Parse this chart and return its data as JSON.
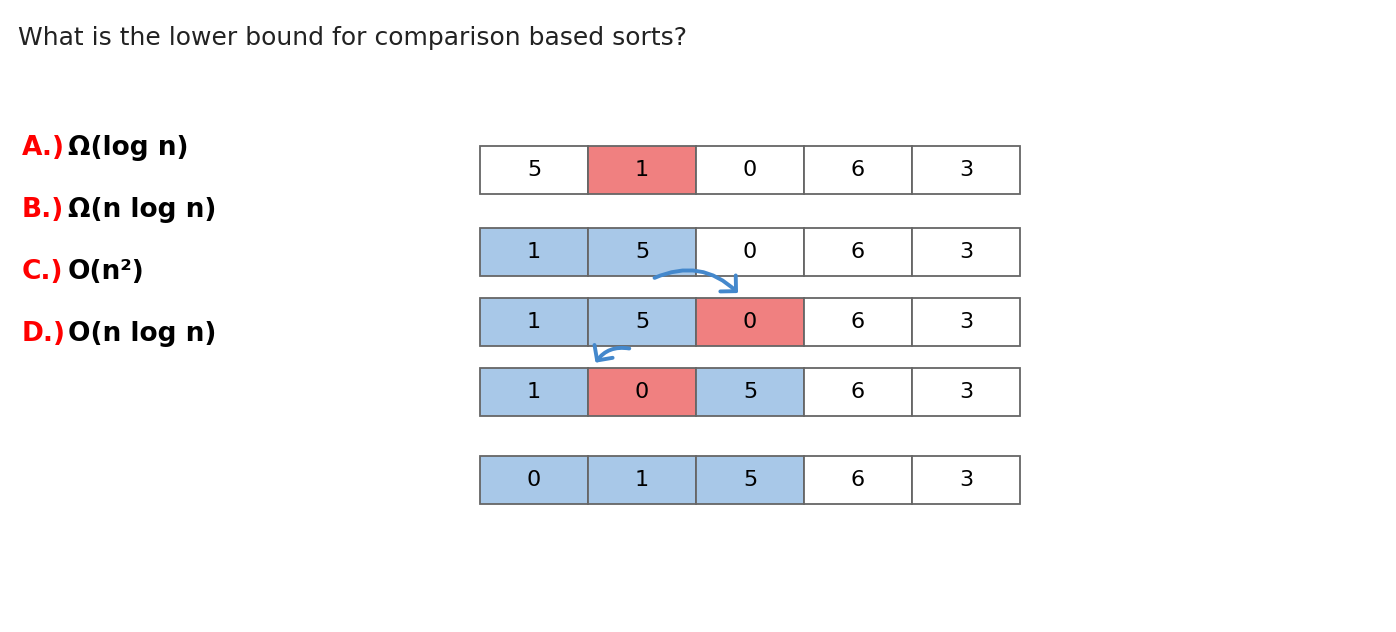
{
  "title": "What is the lower bound for comparison based sorts?",
  "options": [
    {
      "label": "A.)",
      "text": "Ω(log n)"
    },
    {
      "label": "B.)",
      "text": "Ω(n log n)"
    },
    {
      "label": "C.)",
      "text": "O(n²)"
    },
    {
      "label": "D.)",
      "text": "O(n log n)"
    }
  ],
  "rows": [
    {
      "values": [
        5,
        1,
        0,
        6,
        3
      ],
      "blue_cells": [],
      "red_cells": [
        1
      ]
    },
    {
      "values": [
        1,
        5,
        0,
        6,
        3
      ],
      "blue_cells": [
        0,
        1
      ],
      "red_cells": []
    },
    {
      "values": [
        1,
        5,
        0,
        6,
        3
      ],
      "blue_cells": [
        0,
        1
      ],
      "red_cells": [
        2
      ]
    },
    {
      "values": [
        1,
        0,
        5,
        6,
        3
      ],
      "blue_cells": [
        0,
        2
      ],
      "red_cells": [
        1
      ]
    },
    {
      "values": [
        0,
        1,
        5,
        6,
        3
      ],
      "blue_cells": [
        0,
        1,
        2
      ],
      "red_cells": []
    }
  ],
  "bg_color": "#FFFFFF",
  "cell_white": "#FFFFFF",
  "cell_blue": "#A8C8E8",
  "cell_red": "#F08080",
  "border_color": "#666666",
  "text_color": "#000000",
  "label_color": "#FF0000",
  "title_color": "#222222",
  "arrow_color": "#4488CC"
}
